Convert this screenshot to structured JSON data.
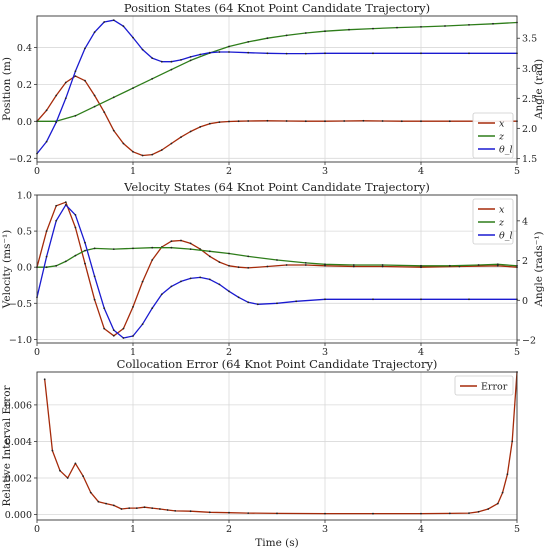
{
  "chart_data": [
    {
      "type": "line",
      "title": "Position States (64 Knot Point Candidate Trajectory)",
      "xlabel": "",
      "ylabel": "Position (m)",
      "ylabel_right": "Angle (rad)",
      "xlim": [
        0,
        5
      ],
      "ylim": [
        -0.22,
        0.57
      ],
      "ylim_right": [
        1.44,
        3.87
      ],
      "xticks": [
        "0",
        "1",
        "2",
        "3",
        "4",
        "5"
      ],
      "yticks": [
        "−0.2",
        "0.0",
        "0.2",
        "0.4"
      ],
      "yticks_right": [
        "1.5",
        "2.0",
        "2.5",
        "3.0",
        "3.5"
      ],
      "grid": true,
      "legend": "bottom-right",
      "series": [
        {
          "name": "x",
          "axis": "left",
          "color": "#a52a0a",
          "x": [
            0,
            0.1,
            0.2,
            0.3,
            0.4,
            0.5,
            0.6,
            0.7,
            0.8,
            0.9,
            1.0,
            1.1,
            1.2,
            1.3,
            1.4,
            1.5,
            1.6,
            1.7,
            1.8,
            1.9,
            2.0,
            2.1,
            2.2,
            2.4,
            2.6,
            2.8,
            3.0,
            3.2,
            3.4,
            3.6,
            3.8,
            4.0,
            4.3,
            4.6,
            5.0
          ],
          "y": [
            0.0,
            0.06,
            0.14,
            0.21,
            0.245,
            0.22,
            0.14,
            0.05,
            -0.05,
            -0.12,
            -0.165,
            -0.185,
            -0.18,
            -0.155,
            -0.12,
            -0.085,
            -0.055,
            -0.03,
            -0.013,
            -0.004,
            -0.001,
            0.001,
            0.002,
            0.003,
            0.002,
            0.001,
            0.001,
            0.002,
            0.003,
            0.002,
            0.001,
            0.001,
            0.001,
            0.001,
            0.001
          ]
        },
        {
          "name": "z",
          "axis": "left",
          "color": "#2e7d1a",
          "x": [
            0,
            0.2,
            0.4,
            0.6,
            0.8,
            1.0,
            1.2,
            1.4,
            1.6,
            1.8,
            2.0,
            2.2,
            2.4,
            2.6,
            2.8,
            3.0,
            3.25,
            3.5,
            3.75,
            4.0,
            4.25,
            4.5,
            4.75,
            5.0
          ],
          "y": [
            0.0,
            0.0,
            0.03,
            0.08,
            0.13,
            0.18,
            0.23,
            0.28,
            0.33,
            0.37,
            0.405,
            0.43,
            0.45,
            0.465,
            0.478,
            0.488,
            0.496,
            0.502,
            0.507,
            0.511,
            0.516,
            0.522,
            0.528,
            0.535
          ]
        },
        {
          "name": "θ_l",
          "axis": "right",
          "color": "#1a1ad0",
          "x": [
            0,
            0.1,
            0.2,
            0.3,
            0.4,
            0.5,
            0.6,
            0.7,
            0.8,
            0.9,
            1.0,
            1.1,
            1.2,
            1.3,
            1.4,
            1.5,
            1.6,
            1.7,
            1.8,
            1.9,
            2.0,
            2.2,
            2.4,
            2.6,
            2.8,
            3.0,
            3.5,
            4.0,
            4.5,
            5.0
          ],
          "y": [
            1.58,
            1.78,
            2.1,
            2.5,
            2.95,
            3.33,
            3.6,
            3.77,
            3.8,
            3.7,
            3.51,
            3.31,
            3.17,
            3.11,
            3.11,
            3.14,
            3.19,
            3.23,
            3.26,
            3.27,
            3.27,
            3.26,
            3.25,
            3.245,
            3.245,
            3.25,
            3.25,
            3.25,
            3.25,
            3.25
          ]
        }
      ]
    },
    {
      "type": "line",
      "title": "Velocity States (64 Knot Point Candidate Trajectory)",
      "xlabel": "",
      "ylabel": "Velocity (ms⁻¹)",
      "ylabel_right": "Angle (rads⁻¹)",
      "xlim": [
        0,
        5
      ],
      "ylim": [
        -1.05,
        1.0
      ],
      "ylim_right": [
        -2.15,
        5.3
      ],
      "xticks": [
        "0",
        "1",
        "2",
        "3",
        "4",
        "5"
      ],
      "yticks": [
        "−1.0",
        "−0.5",
        "0.0",
        "0.5",
        "1.0"
      ],
      "yticks_right": [
        "−2",
        "0",
        "2",
        "4"
      ],
      "grid": true,
      "legend": "top-right",
      "series": [
        {
          "name": "x",
          "axis": "left",
          "color": "#a52a0a",
          "x": [
            0,
            0.1,
            0.2,
            0.3,
            0.4,
            0.5,
            0.6,
            0.7,
            0.8,
            0.9,
            1.0,
            1.1,
            1.2,
            1.3,
            1.4,
            1.5,
            1.6,
            1.7,
            1.8,
            1.9,
            2.0,
            2.1,
            2.2,
            2.4,
            2.6,
            2.8,
            3.0,
            3.3,
            3.6,
            4.0,
            4.4,
            4.8,
            5.0
          ],
          "y": [
            0.0,
            0.5,
            0.85,
            0.9,
            0.55,
            0.05,
            -0.45,
            -0.85,
            -0.95,
            -0.85,
            -0.55,
            -0.2,
            0.1,
            0.28,
            0.36,
            0.37,
            0.33,
            0.25,
            0.15,
            0.07,
            0.02,
            0.0,
            -0.01,
            0.01,
            0.03,
            0.03,
            0.02,
            0.01,
            0.01,
            0.0,
            0.01,
            0.02,
            0.0
          ]
        },
        {
          "name": "z",
          "axis": "left",
          "color": "#2e7d1a",
          "x": [
            0,
            0.1,
            0.2,
            0.3,
            0.4,
            0.5,
            0.6,
            0.8,
            1.0,
            1.2,
            1.4,
            1.6,
            1.8,
            2.0,
            2.2,
            2.5,
            2.8,
            3.0,
            3.3,
            3.6,
            4.0,
            4.3,
            4.6,
            4.8,
            5.0
          ],
          "y": [
            0.0,
            0.0,
            0.02,
            0.08,
            0.16,
            0.23,
            0.26,
            0.25,
            0.26,
            0.27,
            0.27,
            0.25,
            0.22,
            0.19,
            0.15,
            0.1,
            0.06,
            0.04,
            0.03,
            0.03,
            0.02,
            0.02,
            0.03,
            0.04,
            0.02
          ]
        },
        {
          "name": "θ_l",
          "axis": "right",
          "color": "#1a1ad0",
          "x": [
            0,
            0.1,
            0.2,
            0.3,
            0.4,
            0.5,
            0.6,
            0.7,
            0.8,
            0.9,
            1.0,
            1.1,
            1.2,
            1.3,
            1.4,
            1.5,
            1.6,
            1.7,
            1.8,
            1.9,
            2.0,
            2.1,
            2.2,
            2.3,
            2.5,
            2.7,
            3.0,
            3.5,
            4.0,
            4.5,
            5.0
          ],
          "y": [
            0.15,
            2.2,
            4.0,
            4.8,
            4.3,
            2.9,
            1.2,
            -0.4,
            -1.5,
            -1.9,
            -1.8,
            -1.2,
            -0.4,
            0.3,
            0.7,
            0.95,
            1.1,
            1.15,
            1.05,
            0.8,
            0.45,
            0.15,
            -0.1,
            -0.2,
            -0.15,
            -0.05,
            0.05,
            0.05,
            0.05,
            0.05,
            0.05
          ]
        }
      ]
    },
    {
      "type": "line",
      "title": "Collocation Error (64 Knot Point Candidate Trajectory)",
      "xlabel": "Time (s)",
      "ylabel": "Relative Interval Error",
      "xlim": [
        0,
        5
      ],
      "ylim": [
        -0.0003,
        0.0078
      ],
      "xticks": [
        "0",
        "1",
        "2",
        "3",
        "4",
        "5"
      ],
      "yticks": [
        "0.000",
        "0.002",
        "0.004",
        "0.006"
      ],
      "grid": true,
      "legend": "top-right",
      "series": [
        {
          "name": "Error",
          "color": "#a52a0a",
          "x": [
            0.08,
            0.16,
            0.24,
            0.32,
            0.4,
            0.48,
            0.56,
            0.64,
            0.72,
            0.8,
            0.88,
            0.96,
            1.04,
            1.12,
            1.2,
            1.28,
            1.36,
            1.44,
            1.6,
            1.8,
            2.0,
            2.2,
            2.5,
            3.0,
            3.5,
            4.0,
            4.3,
            4.5,
            4.6,
            4.7,
            4.8,
            4.85,
            4.9,
            4.95,
            5.0
          ],
          "y": [
            0.0074,
            0.0035,
            0.0024,
            0.002,
            0.0028,
            0.0021,
            0.0012,
            0.0007,
            0.0006,
            0.0005,
            0.0003,
            0.00035,
            0.00035,
            0.0004,
            0.00035,
            0.0003,
            0.00025,
            0.0002,
            0.00018,
            0.00012,
            0.0001,
            8e-05,
            6e-05,
            5e-05,
            5e-05,
            5e-05,
            6e-05,
            8e-05,
            0.00015,
            0.0003,
            0.0006,
            0.0012,
            0.0022,
            0.004,
            0.0078
          ]
        }
      ]
    }
  ]
}
